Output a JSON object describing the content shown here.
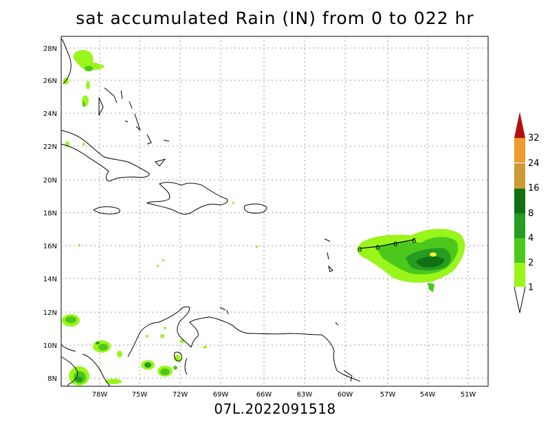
{
  "title": "sat accumulated Rain (IN) from 0 to 022 hr",
  "subtitle": "07L.2022091518",
  "map": {
    "lon_ticks": [
      "78W",
      "75W",
      "72W",
      "69W",
      "66W",
      "63W",
      "60W",
      "57W",
      "54W",
      "51W"
    ],
    "lat_ticks": [
      "28N",
      "26N",
      "24N",
      "22N",
      "20N",
      "18N",
      "16N",
      "14N",
      "12N",
      "10N",
      "8N"
    ],
    "grid": "dotted",
    "storm_track_symbol": "6"
  },
  "colorbar": {
    "labels": [
      "1",
      "2",
      "4",
      "8",
      "16",
      "24",
      "32"
    ],
    "colors": [
      "#99f51a",
      "#4cc81c",
      "#259c22",
      "#117112",
      "#ffff33",
      "#cd9a33",
      "#f09a30",
      "#b20f0f"
    ],
    "placement": "right"
  }
}
